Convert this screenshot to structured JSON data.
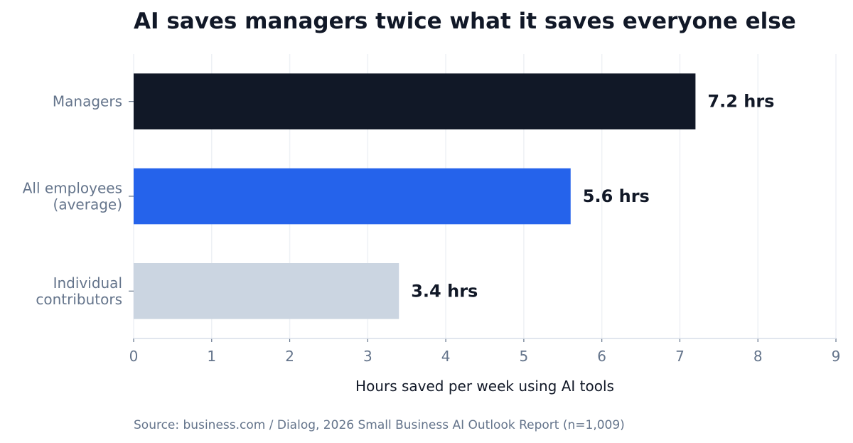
{
  "chart_data": {
    "type": "bar",
    "orientation": "horizontal",
    "title": "AI saves managers twice what it saves everyone else",
    "xlabel": "Hours saved per week using AI tools",
    "ylabel": "",
    "xlim": [
      0,
      9
    ],
    "x_ticks": [
      "0",
      "1",
      "2",
      "3",
      "4",
      "5",
      "6",
      "7",
      "8",
      "9"
    ],
    "grid": "vertical",
    "categories": [
      [
        "Managers"
      ],
      [
        "All employees",
        "(average)"
      ],
      [
        "Individual",
        "contributors"
      ]
    ],
    "values": [
      7.2,
      5.6,
      3.4
    ],
    "data_labels": [
      "7.2 hrs",
      "5.6 hrs",
      "3.4 hrs"
    ],
    "colors": [
      "#111827",
      "#2563eb",
      "#cbd5e1"
    ],
    "source": "Source: business.com / Dialog, 2026 Small Business AI Outlook Report (n=1,009)"
  }
}
